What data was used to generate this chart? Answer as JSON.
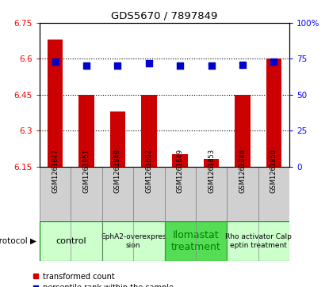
{
  "title": "GDS5670 / 7897849",
  "samples": [
    "GSM1261847",
    "GSM1261851",
    "GSM1261848",
    "GSM1261852",
    "GSM1261849",
    "GSM1261853",
    "GSM1261846",
    "GSM1261850"
  ],
  "transformed_count": [
    6.68,
    6.45,
    6.38,
    6.45,
    6.2,
    6.18,
    6.45,
    6.6
  ],
  "percentile_display": [
    73,
    70,
    70,
    72,
    70,
    70,
    71,
    73
  ],
  "ylim_left": [
    6.15,
    6.75
  ],
  "ylim_right": [
    0,
    100
  ],
  "yticks_left": [
    6.15,
    6.3,
    6.45,
    6.6,
    6.75
  ],
  "ytick_labels_left": [
    "6.15",
    "6.3",
    "6.45",
    "6.6",
    "6.75"
  ],
  "yticks_right": [
    0,
    25,
    50,
    75,
    100
  ],
  "ytick_labels_right": [
    "0",
    "25",
    "50",
    "75",
    "100%"
  ],
  "hlines": [
    6.3,
    6.45,
    6.6
  ],
  "bar_color": "#cc0000",
  "dot_color": "#0000cc",
  "protocol_groups": [
    {
      "label": "control",
      "start": 0,
      "end": 2,
      "color": "#ccffcc",
      "text_color": "black",
      "fontsize": 8
    },
    {
      "label": "EphA2-overexpres\nsion",
      "start": 2,
      "end": 4,
      "color": "#ccffcc",
      "text_color": "black",
      "fontsize": 6.5
    },
    {
      "label": "Ilomastat\ntreatment",
      "start": 4,
      "end": 6,
      "color": "#55dd55",
      "text_color": "green",
      "fontsize": 9
    },
    {
      "label": "Rho activator Calp\neptin treatment",
      "start": 6,
      "end": 8,
      "color": "#ccffcc",
      "text_color": "black",
      "fontsize": 6.5
    }
  ],
  "bar_baseline": 6.15,
  "dot_size": 30,
  "sample_row_color": "#d0d0d0",
  "sample_row_edge": "#888888"
}
